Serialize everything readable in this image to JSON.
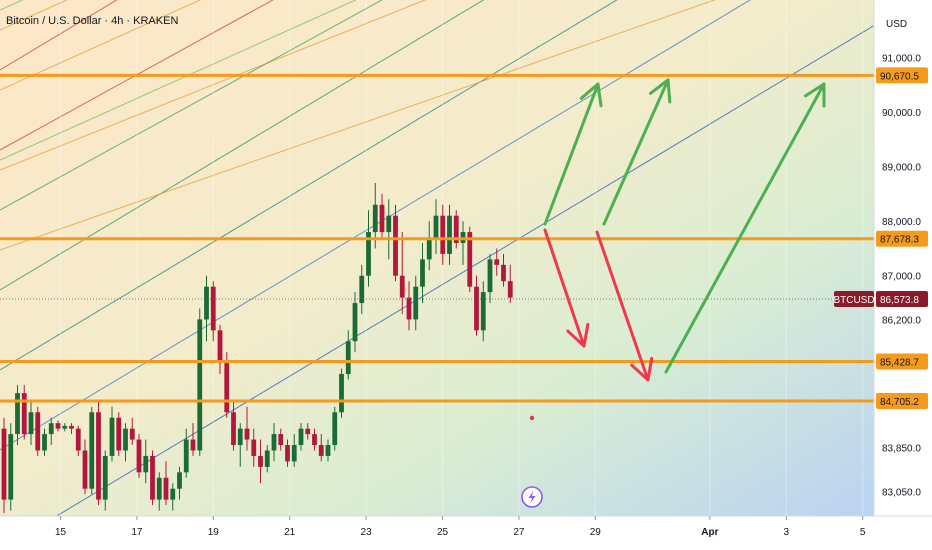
{
  "header": {
    "title": "Bitcoin / U.S. Dollar · 4h · KRAKEN",
    "currency": "USD"
  },
  "colors": {
    "bull": "#1b6b35",
    "bear": "#b2183d",
    "level": "#f59a1a",
    "arrow_up": "#4caf50",
    "arrow_down": "#f0394d",
    "price_tag": "#8b1a2b"
  },
  "chart_data": {
    "type": "candlestick",
    "title": "",
    "ylim": [
      82600,
      92050
    ],
    "y_ticks": [
      {
        "label": "91,000.0",
        "value": 91000
      },
      {
        "label": "90,000.0",
        "value": 90000
      },
      {
        "label": "89,000.0",
        "value": 89000
      },
      {
        "label": "88,000.0",
        "value": 88000
      },
      {
        "label": "87,000.0",
        "value": 87000
      },
      {
        "label": "86,200.0",
        "value": 86200
      },
      {
        "label": "83,850.0",
        "value": 83850
      },
      {
        "label": "83,050.0",
        "value": 83050
      }
    ],
    "x_ticks": [
      {
        "label": "15",
        "day": 15
      },
      {
        "label": "17",
        "day": 17
      },
      {
        "label": "19",
        "day": 19
      },
      {
        "label": "21",
        "day": 21
      },
      {
        "label": "23",
        "day": 23
      },
      {
        "label": "25",
        "day": 25
      },
      {
        "label": "27",
        "day": 27
      },
      {
        "label": "29",
        "day": 29
      },
      {
        "label": "Apr",
        "day": 32,
        "bold": true
      },
      {
        "label": "3",
        "day": 34
      },
      {
        "label": "5",
        "day": 36
      }
    ],
    "levels": [
      {
        "label": "90,670.5",
        "value": 90670.5
      },
      {
        "label": "87,678.3",
        "value": 87678.3
      },
      {
        "label": "85,428.7",
        "value": 85428.7
      },
      {
        "label": "84,705.2",
        "value": 84705.2
      }
    ],
    "last_price": {
      "symbol": "BTCUSD",
      "label": "86,573.8",
      "value": 86573.8
    },
    "candles_ohlc": [
      [
        84200,
        84400,
        82650,
        82900
      ],
      [
        82900,
        84300,
        82700,
        84100
      ],
      [
        84100,
        85000,
        83900,
        84850
      ],
      [
        84850,
        85000,
        84000,
        84100
      ],
      [
        84100,
        84700,
        83900,
        84500
      ],
      [
        84500,
        84600,
        83700,
        83800
      ],
      [
        83800,
        84200,
        83700,
        84100
      ],
      [
        84100,
        84400,
        83900,
        84300
      ],
      [
        84300,
        84350,
        84150,
        84200
      ],
      [
        84200,
        84300,
        84150,
        84250
      ],
      [
        84250,
        84300,
        84100,
        84200
      ],
      [
        84200,
        84250,
        83700,
        83800
      ],
      [
        83800,
        84000,
        83000,
        83100
      ],
      [
        83100,
        84600,
        83000,
        84500
      ],
      [
        84500,
        84700,
        82800,
        82900
      ],
      [
        82900,
        83800,
        82700,
        83700
      ],
      [
        83700,
        84600,
        83600,
        84400
      ],
      [
        84400,
        84500,
        83700,
        83800
      ],
      [
        83800,
        84300,
        83600,
        84200
      ],
      [
        84200,
        84400,
        83900,
        84000
      ],
      [
        84000,
        84100,
        83300,
        83400
      ],
      [
        83400,
        84000,
        83200,
        83700
      ],
      [
        83700,
        83800,
        82800,
        82900
      ],
      [
        82900,
        83400,
        82700,
        83300
      ],
      [
        83300,
        83600,
        82800,
        82900
      ],
      [
        82900,
        83200,
        82700,
        83100
      ],
      [
        83100,
        83500,
        82900,
        83400
      ],
      [
        83400,
        84200,
        83300,
        84000
      ],
      [
        84000,
        84300,
        83700,
        83800
      ],
      [
        83800,
        86400,
        83700,
        86200
      ],
      [
        86200,
        87000,
        85800,
        86800
      ],
      [
        86800,
        86900,
        85800,
        86000
      ],
      [
        86000,
        86100,
        85200,
        85400
      ],
      [
        85400,
        85600,
        84400,
        84500
      ],
      [
        84500,
        84700,
        83800,
        83900
      ],
      [
        83900,
        84300,
        83500,
        84200
      ],
      [
        84200,
        84600,
        83800,
        84000
      ],
      [
        84000,
        84200,
        83500,
        83700
      ],
      [
        83700,
        84000,
        83200,
        83500
      ],
      [
        83500,
        83900,
        83400,
        83800
      ],
      [
        83800,
        84300,
        83600,
        84100
      ],
      [
        84100,
        84200,
        83800,
        83900
      ],
      [
        83900,
        84000,
        83500,
        83600
      ],
      [
        83600,
        84100,
        83500,
        83900
      ],
      [
        83900,
        84300,
        83800,
        84200
      ],
      [
        84200,
        84300,
        84000,
        84100
      ],
      [
        84100,
        84200,
        83800,
        83900
      ],
      [
        83900,
        84100,
        83600,
        83700
      ],
      [
        83700,
        84000,
        83600,
        83900
      ],
      [
        83900,
        84600,
        83800,
        84500
      ],
      [
        84500,
        85300,
        84400,
        85200
      ],
      [
        85200,
        86000,
        85100,
        85800
      ],
      [
        85800,
        86700,
        85600,
        86500
      ],
      [
        86500,
        87200,
        86300,
        87000
      ],
      [
        87000,
        88200,
        86800,
        87800
      ],
      [
        87800,
        88700,
        87500,
        88300
      ],
      [
        88300,
        88500,
        87700,
        87800
      ],
      [
        87800,
        88400,
        87300,
        88100
      ],
      [
        88100,
        88300,
        86900,
        87000
      ],
      [
        87000,
        87800,
        86300,
        86600
      ],
      [
        86600,
        86900,
        86000,
        86200
      ],
      [
        86200,
        87000,
        86000,
        86800
      ],
      [
        86800,
        87600,
        86500,
        87300
      ],
      [
        87300,
        88000,
        87100,
        87700
      ],
      [
        87700,
        88400,
        87400,
        88100
      ],
      [
        88100,
        88300,
        87200,
        87400
      ],
      [
        87400,
        88300,
        87200,
        88100
      ],
      [
        88100,
        88200,
        87500,
        87600
      ],
      [
        87600,
        88000,
        87200,
        87800
      ],
      [
        87800,
        87900,
        86700,
        86800
      ],
      [
        86800,
        87000,
        85900,
        86000
      ],
      [
        86000,
        86900,
        85800,
        86700
      ],
      [
        86700,
        87400,
        86500,
        87300
      ],
      [
        87300,
        87500,
        87000,
        87200
      ],
      [
        87200,
        87400,
        86800,
        86900
      ],
      [
        86900,
        87200,
        86500,
        86600
      ]
    ]
  }
}
